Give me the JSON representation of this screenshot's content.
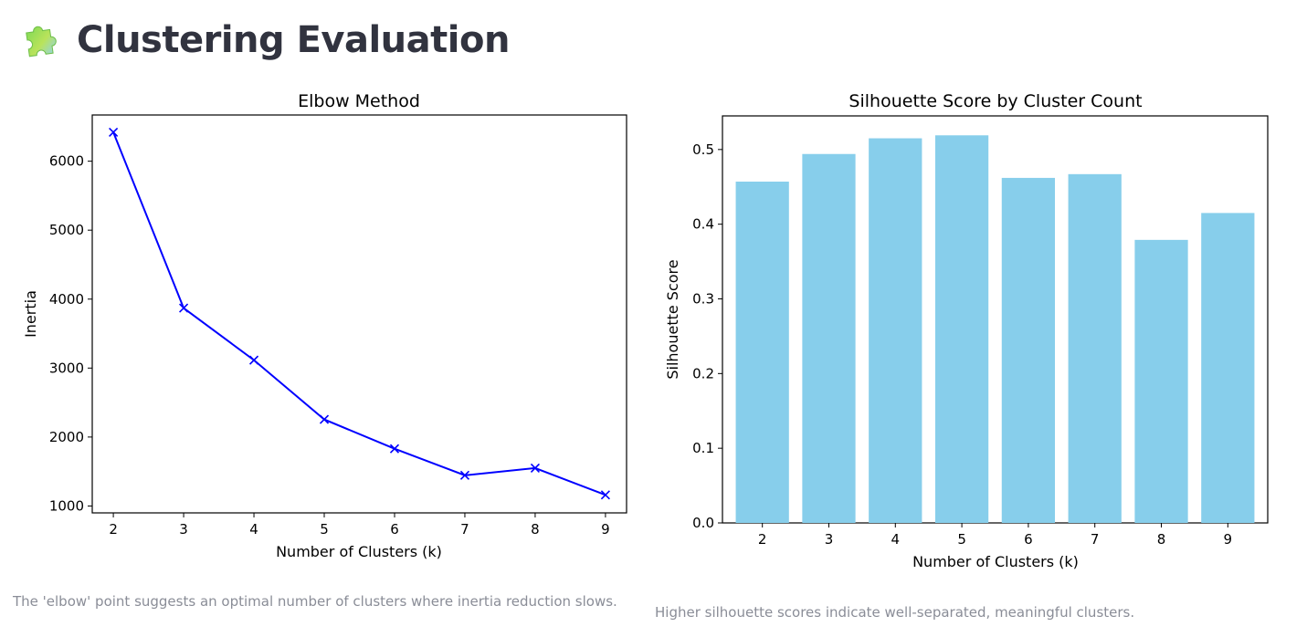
{
  "page": {
    "title": "Clustering Evaluation",
    "title_icon": "puzzle-piece-icon"
  },
  "captions": {
    "elbow": "The 'elbow' point suggests an optimal number of clusters where inertia reduction slows.",
    "silhouette": "Higher silhouette scores indicate well-separated, meaningful clusters."
  },
  "chart_data": [
    {
      "type": "line",
      "title": "Elbow Method",
      "xlabel": "Number of Clusters (k)",
      "ylabel": "Inertia",
      "x": [
        2,
        3,
        4,
        5,
        6,
        7,
        8,
        9
      ],
      "y": [
        6420,
        3870,
        3115,
        2255,
        1830,
        1445,
        1550,
        1160
      ],
      "xlim": [
        1.7,
        9.3
      ],
      "ylim": [
        900,
        6670
      ],
      "xticks": [
        "2",
        "3",
        "4",
        "5",
        "6",
        "7",
        "8",
        "9"
      ],
      "yticks": [
        "1000",
        "2000",
        "3000",
        "4000",
        "5000",
        "6000"
      ],
      "marker": "x",
      "color": "#0000ff",
      "grid": false,
      "legend": "none"
    },
    {
      "type": "bar",
      "title": "Silhouette Score by Cluster Count",
      "xlabel": "Number of Clusters (k)",
      "ylabel": "Silhouette Score",
      "categories": [
        "2",
        "3",
        "4",
        "5",
        "6",
        "7",
        "8",
        "9"
      ],
      "values": [
        0.457,
        0.494,
        0.515,
        0.519,
        0.462,
        0.467,
        0.379,
        0.415
      ],
      "ylim": [
        0,
        0.545
      ],
      "yticks": [
        "0.0",
        "0.1",
        "0.2",
        "0.3",
        "0.4",
        "0.5"
      ],
      "color": "#87ceeb",
      "grid": false,
      "legend": "none"
    }
  ]
}
